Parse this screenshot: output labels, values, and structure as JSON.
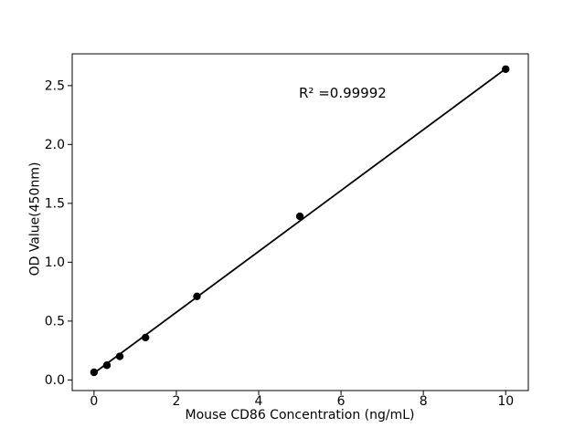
{
  "chart_data": {
    "type": "scatter",
    "title": "",
    "xlabel": "Mouse CD86 Concentration (ng/mL)",
    "ylabel": "OD Value(450nm)",
    "annotation": "R² =0.99992",
    "r_squared": 0.99992,
    "x": [
      0,
      0.3125,
      0.625,
      1.25,
      2.5,
      5,
      10
    ],
    "y": [
      0.065,
      0.125,
      0.2,
      0.36,
      0.71,
      1.39,
      2.64
    ],
    "fit_line": {
      "slope": 0.2585,
      "intercept": 0.058,
      "x_start": 0,
      "x_end": 10
    },
    "x_ticks": [
      0,
      2,
      4,
      6,
      8,
      10
    ],
    "x_tick_labels": [
      "0",
      "2",
      "4",
      "6",
      "8",
      "10"
    ],
    "y_ticks": [
      0.0,
      0.5,
      1.0,
      1.5,
      2.0,
      2.5
    ],
    "y_tick_labels": [
      "0.0",
      "0.5",
      "1.0",
      "1.5",
      "2.0",
      "2.5"
    ],
    "xlim": [
      -0.53,
      10.55
    ],
    "ylim": [
      -0.09,
      2.77
    ],
    "grid": false,
    "legend": null,
    "marker_color": "#000000",
    "line_color": "#000000",
    "axis_color": "#000000",
    "background_color": "#ffffff"
  }
}
